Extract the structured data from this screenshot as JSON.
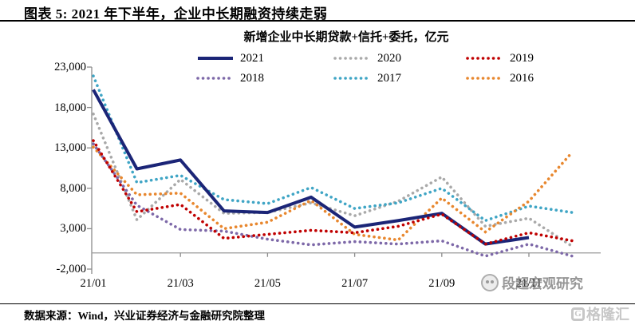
{
  "header": {
    "title": "图表 5:  2021 年下半年，企业中长期融资持续走弱"
  },
  "chart_data": {
    "type": "line",
    "title": "新增企业中长期贷款+信托+委托，亿元",
    "ylabel": "亿元",
    "ylim": [
      -2000,
      23000
    ],
    "y_tick_step": 5000,
    "y_ticks": [
      "23,000",
      "18,000",
      "13,000",
      "8,000",
      "3,000",
      "-2,000"
    ],
    "x_labels": [
      "21/01",
      "21/03",
      "21/05",
      "21/07",
      "21/09",
      "21/11"
    ],
    "x_label_months": [
      1,
      3,
      5,
      7,
      9,
      11
    ],
    "grid": "zero-line-only",
    "legend_position": "top",
    "legend_order": [
      "2021",
      "2020",
      "2019",
      "2018",
      "2017",
      "2016"
    ],
    "draw_order": [
      "2020",
      "2018",
      "2017",
      "2016",
      "2021",
      "2019"
    ],
    "series": [
      {
        "name": "2021",
        "color": "#1B2577",
        "style": "solid",
        "values": [
          20200,
          10400,
          11500,
          5200,
          5000,
          6900,
          3200,
          4000,
          4900,
          1100,
          1900
        ]
      },
      {
        "name": "2020",
        "color": "#A9A9A9",
        "style": "dotted",
        "values": [
          17200,
          4100,
          9100,
          4900,
          5000,
          6200,
          4600,
          6400,
          9400,
          3300,
          4300,
          800
        ]
      },
      {
        "name": "2019",
        "color": "#C00000",
        "style": "dotted",
        "values": [
          13900,
          5100,
          6000,
          1800,
          2300,
          2800,
          2500,
          3300,
          4800,
          1100,
          2500,
          1500
        ]
      },
      {
        "name": "2018",
        "color": "#7D68A8",
        "style": "dotted",
        "values": [
          13500,
          5900,
          2900,
          2700,
          1700,
          1000,
          1400,
          1100,
          1500,
          -400,
          1100,
          -400
        ]
      },
      {
        "name": "2017",
        "color": "#3FA5C5",
        "style": "dotted",
        "values": [
          21900,
          8700,
          9600,
          6600,
          6100,
          8100,
          5500,
          6200,
          8000,
          4000,
          5800,
          5000
        ]
      },
      {
        "name": "2016",
        "color": "#E8872E",
        "style": "dotted",
        "values": [
          13100,
          7200,
          7400,
          3000,
          3800,
          6500,
          2300,
          1600,
          6800,
          2600,
          6400,
          12500
        ]
      }
    ]
  },
  "footer": {
    "source": "数据来源：Wind，兴业证券经济与金融研究院整理"
  },
  "watermarks": {
    "analyst": "段超宏观研究",
    "brand": "格隆汇",
    "brand_letter": "G"
  }
}
